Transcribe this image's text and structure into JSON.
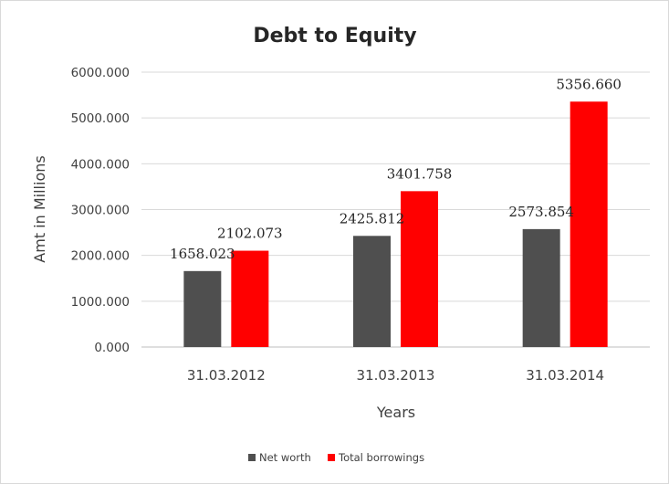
{
  "chart_data": {
    "type": "bar",
    "title": "Debt to Equity",
    "xlabel": "Years",
    "ylabel": "Amt in Millions",
    "categories": [
      "31.03.2012",
      "31.03.2013",
      "31.03.2014"
    ],
    "series": [
      {
        "name": "Net worth",
        "color": "#4f4f4f",
        "values": [
          1658.023,
          2425.812,
          2573.854
        ],
        "labels": [
          "1658.023",
          "2425.812",
          "2573.854"
        ]
      },
      {
        "name": "Total borrowings",
        "color": "#ff0000",
        "values": [
          2102.073,
          3401.758,
          5356.66
        ],
        "labels": [
          "2102.073",
          "3401.758",
          "5356.660"
        ]
      }
    ],
    "ylim": [
      0,
      6000
    ],
    "yticks": [
      "0.000",
      "1000.000",
      "2000.000",
      "3000.000",
      "4000.000",
      "5000.000",
      "6000.000"
    ],
    "grid": true,
    "legend_position": "bottom"
  }
}
